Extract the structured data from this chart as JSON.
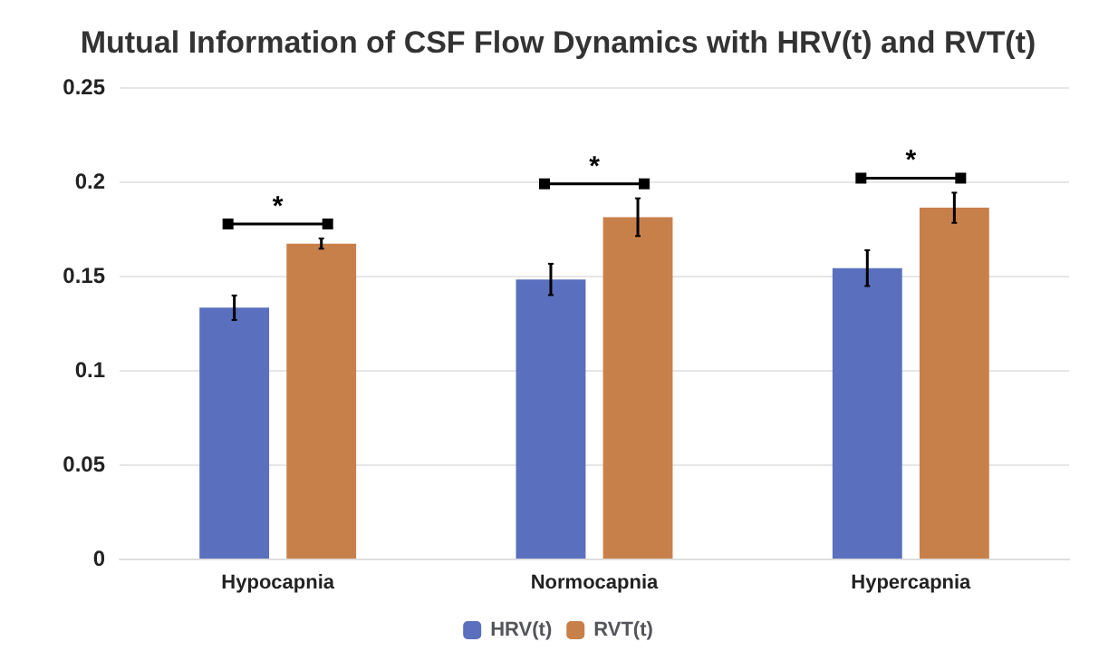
{
  "chart_data": {
    "type": "bar",
    "title": "Mutual Information of CSF Flow Dynamics with HRV(t) and RVT(t)",
    "categories": [
      "Hypocapnia",
      "Normocapnia",
      "Hypercapnia"
    ],
    "series": [
      {
        "name": "HRV(t)",
        "color": "#5a6fbd",
        "values": [
          0.133,
          0.148,
          0.154
        ],
        "errors": [
          0.0065,
          0.0083,
          0.0095
        ]
      },
      {
        "name": "RVT(t)",
        "color": "#c8804a",
        "values": [
          0.167,
          0.181,
          0.186
        ],
        "errors": [
          0.0027,
          0.01,
          0.008
        ]
      }
    ],
    "annotations": [
      "*",
      "*",
      "*"
    ],
    "ylim": [
      0,
      0.25
    ],
    "yticks": [
      0,
      0.05,
      0.1,
      0.15,
      0.2,
      0.25
    ],
    "grid": "y",
    "legend": "bottom"
  }
}
